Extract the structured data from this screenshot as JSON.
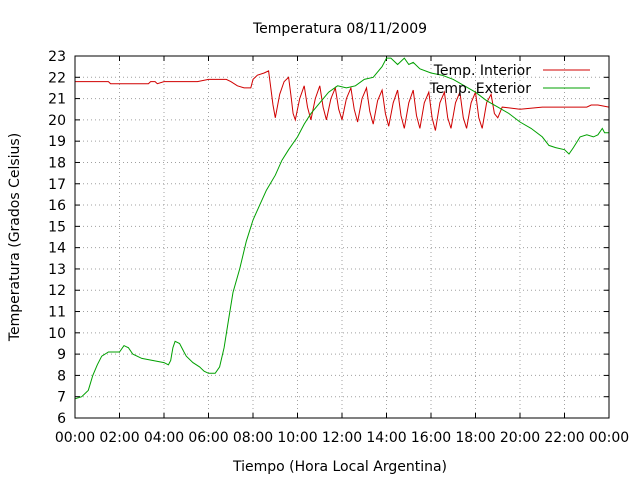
{
  "chart_data": {
    "type": "line",
    "title": "Temperatura 08/11/2009",
    "xlabel": "Tiempo (Hora Local Argentina)",
    "ylabel": "Temperatura (Grados Celsius)",
    "xlim": [
      0,
      24
    ],
    "ylim": [
      6,
      23
    ],
    "grid": true,
    "legend_position": "top-right",
    "x_ticks": [
      0,
      2,
      4,
      6,
      8,
      10,
      12,
      14,
      16,
      18,
      20,
      22,
      24
    ],
    "x_tick_labels": [
      "00:00",
      "02:00",
      "04:00",
      "06:00",
      "08:00",
      "10:00",
      "12:00",
      "14:00",
      "16:00",
      "18:00",
      "20:00",
      "22:00",
      "00:00"
    ],
    "y_ticks": [
      6,
      7,
      8,
      9,
      10,
      11,
      12,
      13,
      14,
      15,
      16,
      17,
      18,
      19,
      20,
      21,
      22,
      23
    ],
    "series": [
      {
        "name": "Temp. Interior",
        "color": "#d00000",
        "points": [
          [
            0,
            21.8
          ],
          [
            1,
            21.8
          ],
          [
            1.5,
            21.8
          ],
          [
            1.6,
            21.7
          ],
          [
            2,
            21.7
          ],
          [
            3,
            21.7
          ],
          [
            3.3,
            21.7
          ],
          [
            3.4,
            21.8
          ],
          [
            3.6,
            21.8
          ],
          [
            3.7,
            21.7
          ],
          [
            4,
            21.8
          ],
          [
            4.3,
            21.8
          ],
          [
            4.4,
            21.8
          ],
          [
            5,
            21.8
          ],
          [
            5.5,
            21.8
          ],
          [
            6,
            21.9
          ],
          [
            6.5,
            21.9
          ],
          [
            6.8,
            21.9
          ],
          [
            7,
            21.8
          ],
          [
            7.3,
            21.6
          ],
          [
            7.6,
            21.5
          ],
          [
            7.9,
            21.5
          ],
          [
            8,
            21.9
          ],
          [
            8.2,
            22.1
          ],
          [
            8.5,
            22.2
          ],
          [
            8.7,
            22.3
          ],
          [
            8.8,
            21.5
          ],
          [
            8.9,
            20.7
          ],
          [
            9.0,
            20.1
          ],
          [
            9.2,
            21.2
          ],
          [
            9.4,
            21.8
          ],
          [
            9.6,
            22.0
          ],
          [
            9.7,
            21.2
          ],
          [
            9.8,
            20.3
          ],
          [
            9.9,
            20.0
          ],
          [
            10.1,
            21.0
          ],
          [
            10.3,
            21.6
          ],
          [
            10.45,
            20.6
          ],
          [
            10.6,
            20.0
          ],
          [
            10.8,
            21.0
          ],
          [
            11.0,
            21.6
          ],
          [
            11.15,
            20.6
          ],
          [
            11.3,
            20.0
          ],
          [
            11.5,
            21.0
          ],
          [
            11.7,
            21.5
          ],
          [
            11.85,
            20.5
          ],
          [
            12.0,
            20.0
          ],
          [
            12.2,
            21.0
          ],
          [
            12.4,
            21.5
          ],
          [
            12.55,
            20.5
          ],
          [
            12.7,
            19.9
          ],
          [
            12.9,
            21.0
          ],
          [
            13.1,
            21.5
          ],
          [
            13.25,
            20.4
          ],
          [
            13.4,
            19.8
          ],
          [
            13.6,
            20.9
          ],
          [
            13.8,
            21.4
          ],
          [
            13.95,
            20.3
          ],
          [
            14.1,
            19.7
          ],
          [
            14.3,
            20.8
          ],
          [
            14.5,
            21.4
          ],
          [
            14.65,
            20.2
          ],
          [
            14.8,
            19.6
          ],
          [
            15.0,
            20.8
          ],
          [
            15.2,
            21.4
          ],
          [
            15.35,
            20.2
          ],
          [
            15.5,
            19.6
          ],
          [
            15.7,
            20.8
          ],
          [
            15.9,
            21.3
          ],
          [
            16.05,
            20.1
          ],
          [
            16.2,
            19.5
          ],
          [
            16.4,
            20.8
          ],
          [
            16.6,
            21.3
          ],
          [
            16.75,
            20.1
          ],
          [
            16.9,
            19.6
          ],
          [
            17.1,
            20.8
          ],
          [
            17.3,
            21.3
          ],
          [
            17.45,
            20.1
          ],
          [
            17.6,
            19.6
          ],
          [
            17.8,
            20.8
          ],
          [
            18.0,
            21.3
          ],
          [
            18.15,
            20.1
          ],
          [
            18.3,
            19.6
          ],
          [
            18.5,
            20.8
          ],
          [
            18.7,
            21.2
          ],
          [
            18.85,
            20.3
          ],
          [
            19.0,
            20.1
          ],
          [
            19.2,
            20.6
          ],
          [
            20,
            20.5
          ],
          [
            21,
            20.6
          ],
          [
            21.5,
            20.6
          ],
          [
            22,
            20.6
          ],
          [
            22.5,
            20.6
          ],
          [
            23,
            20.6
          ],
          [
            23.2,
            20.7
          ],
          [
            23.5,
            20.7
          ],
          [
            24,
            20.6
          ]
        ]
      },
      {
        "name": "Temp. Exterior",
        "color": "#00a000",
        "points": [
          [
            0,
            6.9
          ],
          [
            0.3,
            7.0
          ],
          [
            0.6,
            7.3
          ],
          [
            0.8,
            8.0
          ],
          [
            1.0,
            8.5
          ],
          [
            1.2,
            8.9
          ],
          [
            1.5,
            9.1
          ],
          [
            2.0,
            9.1
          ],
          [
            2.2,
            9.4
          ],
          [
            2.4,
            9.3
          ],
          [
            2.6,
            9.0
          ],
          [
            3.0,
            8.8
          ],
          [
            3.5,
            8.7
          ],
          [
            4.0,
            8.6
          ],
          [
            4.2,
            8.5
          ],
          [
            4.3,
            8.7
          ],
          [
            4.4,
            9.3
          ],
          [
            4.5,
            9.6
          ],
          [
            4.7,
            9.5
          ],
          [
            4.9,
            9.1
          ],
          [
            5.0,
            8.9
          ],
          [
            5.3,
            8.6
          ],
          [
            5.6,
            8.4
          ],
          [
            5.8,
            8.2
          ],
          [
            6.0,
            8.1
          ],
          [
            6.3,
            8.1
          ],
          [
            6.5,
            8.4
          ],
          [
            6.7,
            9.3
          ],
          [
            6.9,
            10.6
          ],
          [
            7.1,
            11.9
          ],
          [
            7.4,
            13.0
          ],
          [
            7.7,
            14.3
          ],
          [
            8.0,
            15.3
          ],
          [
            8.3,
            16.0
          ],
          [
            8.6,
            16.7
          ],
          [
            9.0,
            17.4
          ],
          [
            9.3,
            18.1
          ],
          [
            9.6,
            18.6
          ],
          [
            10.0,
            19.2
          ],
          [
            10.3,
            19.8
          ],
          [
            10.6,
            20.3
          ],
          [
            11.0,
            20.8
          ],
          [
            11.4,
            21.3
          ],
          [
            11.8,
            21.6
          ],
          [
            12.2,
            21.5
          ],
          [
            12.6,
            21.6
          ],
          [
            13.0,
            21.9
          ],
          [
            13.4,
            22.0
          ],
          [
            13.8,
            22.5
          ],
          [
            14.0,
            22.9
          ],
          [
            14.2,
            22.9
          ],
          [
            14.5,
            22.6
          ],
          [
            14.8,
            22.9
          ],
          [
            15.0,
            22.6
          ],
          [
            15.2,
            22.7
          ],
          [
            15.5,
            22.4
          ],
          [
            16.0,
            22.2
          ],
          [
            16.5,
            22.1
          ],
          [
            17.0,
            21.9
          ],
          [
            17.5,
            21.6
          ],
          [
            18.0,
            21.3
          ],
          [
            18.5,
            20.9
          ],
          [
            19.0,
            20.6
          ],
          [
            19.5,
            20.3
          ],
          [
            20.0,
            19.9
          ],
          [
            20.5,
            19.6
          ],
          [
            21.0,
            19.2
          ],
          [
            21.3,
            18.8
          ],
          [
            21.6,
            18.7
          ],
          [
            22.0,
            18.6
          ],
          [
            22.2,
            18.4
          ],
          [
            22.4,
            18.7
          ],
          [
            22.7,
            19.2
          ],
          [
            23.0,
            19.3
          ],
          [
            23.3,
            19.2
          ],
          [
            23.5,
            19.3
          ],
          [
            23.7,
            19.6
          ],
          [
            23.8,
            19.4
          ],
          [
            24,
            19.4
          ]
        ]
      }
    ]
  }
}
